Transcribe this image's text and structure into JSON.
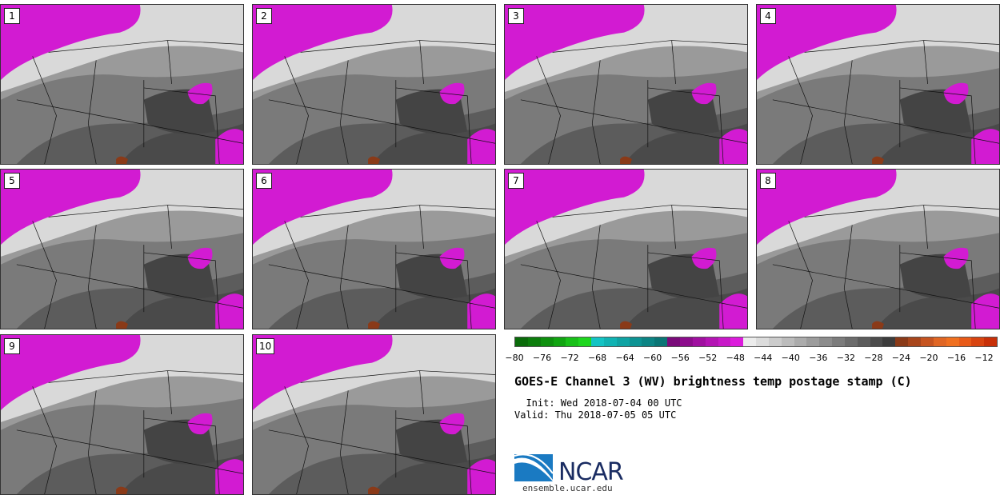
{
  "panels": [
    {
      "label": "1"
    },
    {
      "label": "2"
    },
    {
      "label": "3"
    },
    {
      "label": "4"
    },
    {
      "label": "5"
    },
    {
      "label": "6"
    },
    {
      "label": "7"
    },
    {
      "label": "8"
    },
    {
      "label": "9"
    },
    {
      "label": "10"
    }
  ],
  "colorbar": {
    "colors": [
      "#0a6b0a",
      "#0c7d0c",
      "#0e900e",
      "#11a511",
      "#18c018",
      "#1ed61e",
      "#13c4c4",
      "#10b3b3",
      "#0fa3a3",
      "#0d9393",
      "#0c8484",
      "#0a7575",
      "#7a0b7a",
      "#8c0c8c",
      "#a010a0",
      "#b414b4",
      "#c818c8",
      "#dc1cdc",
      "#ececec",
      "#dcdcdc",
      "#cccccc",
      "#bcbcbc",
      "#acacac",
      "#9c9c9c",
      "#8c8c8c",
      "#7c7c7c",
      "#6c6c6c",
      "#5c5c5c",
      "#4c4c4c",
      "#3c3c3c",
      "#8a3a18",
      "#a8461c",
      "#c65420",
      "#e06624",
      "#f07020",
      "#e85a18",
      "#d84410",
      "#c83008"
    ],
    "ticks": [
      "−80",
      "−76",
      "−72",
      "−68",
      "−64",
      "−60",
      "−56",
      "−52",
      "−48",
      "−44",
      "−40",
      "−36",
      "−32",
      "−28",
      "−24",
      "−20",
      "−16",
      "−12"
    ]
  },
  "title": "GOES-E Channel 3 (WV) brightness temp postage stamp (C)",
  "init": "  Init: Wed 2018-07-04 00 UTC",
  "valid": "Valid: Thu 2018-07-05 05 UTC",
  "logo_text": "NCAR",
  "site": "ensemble.ucar.edu"
}
